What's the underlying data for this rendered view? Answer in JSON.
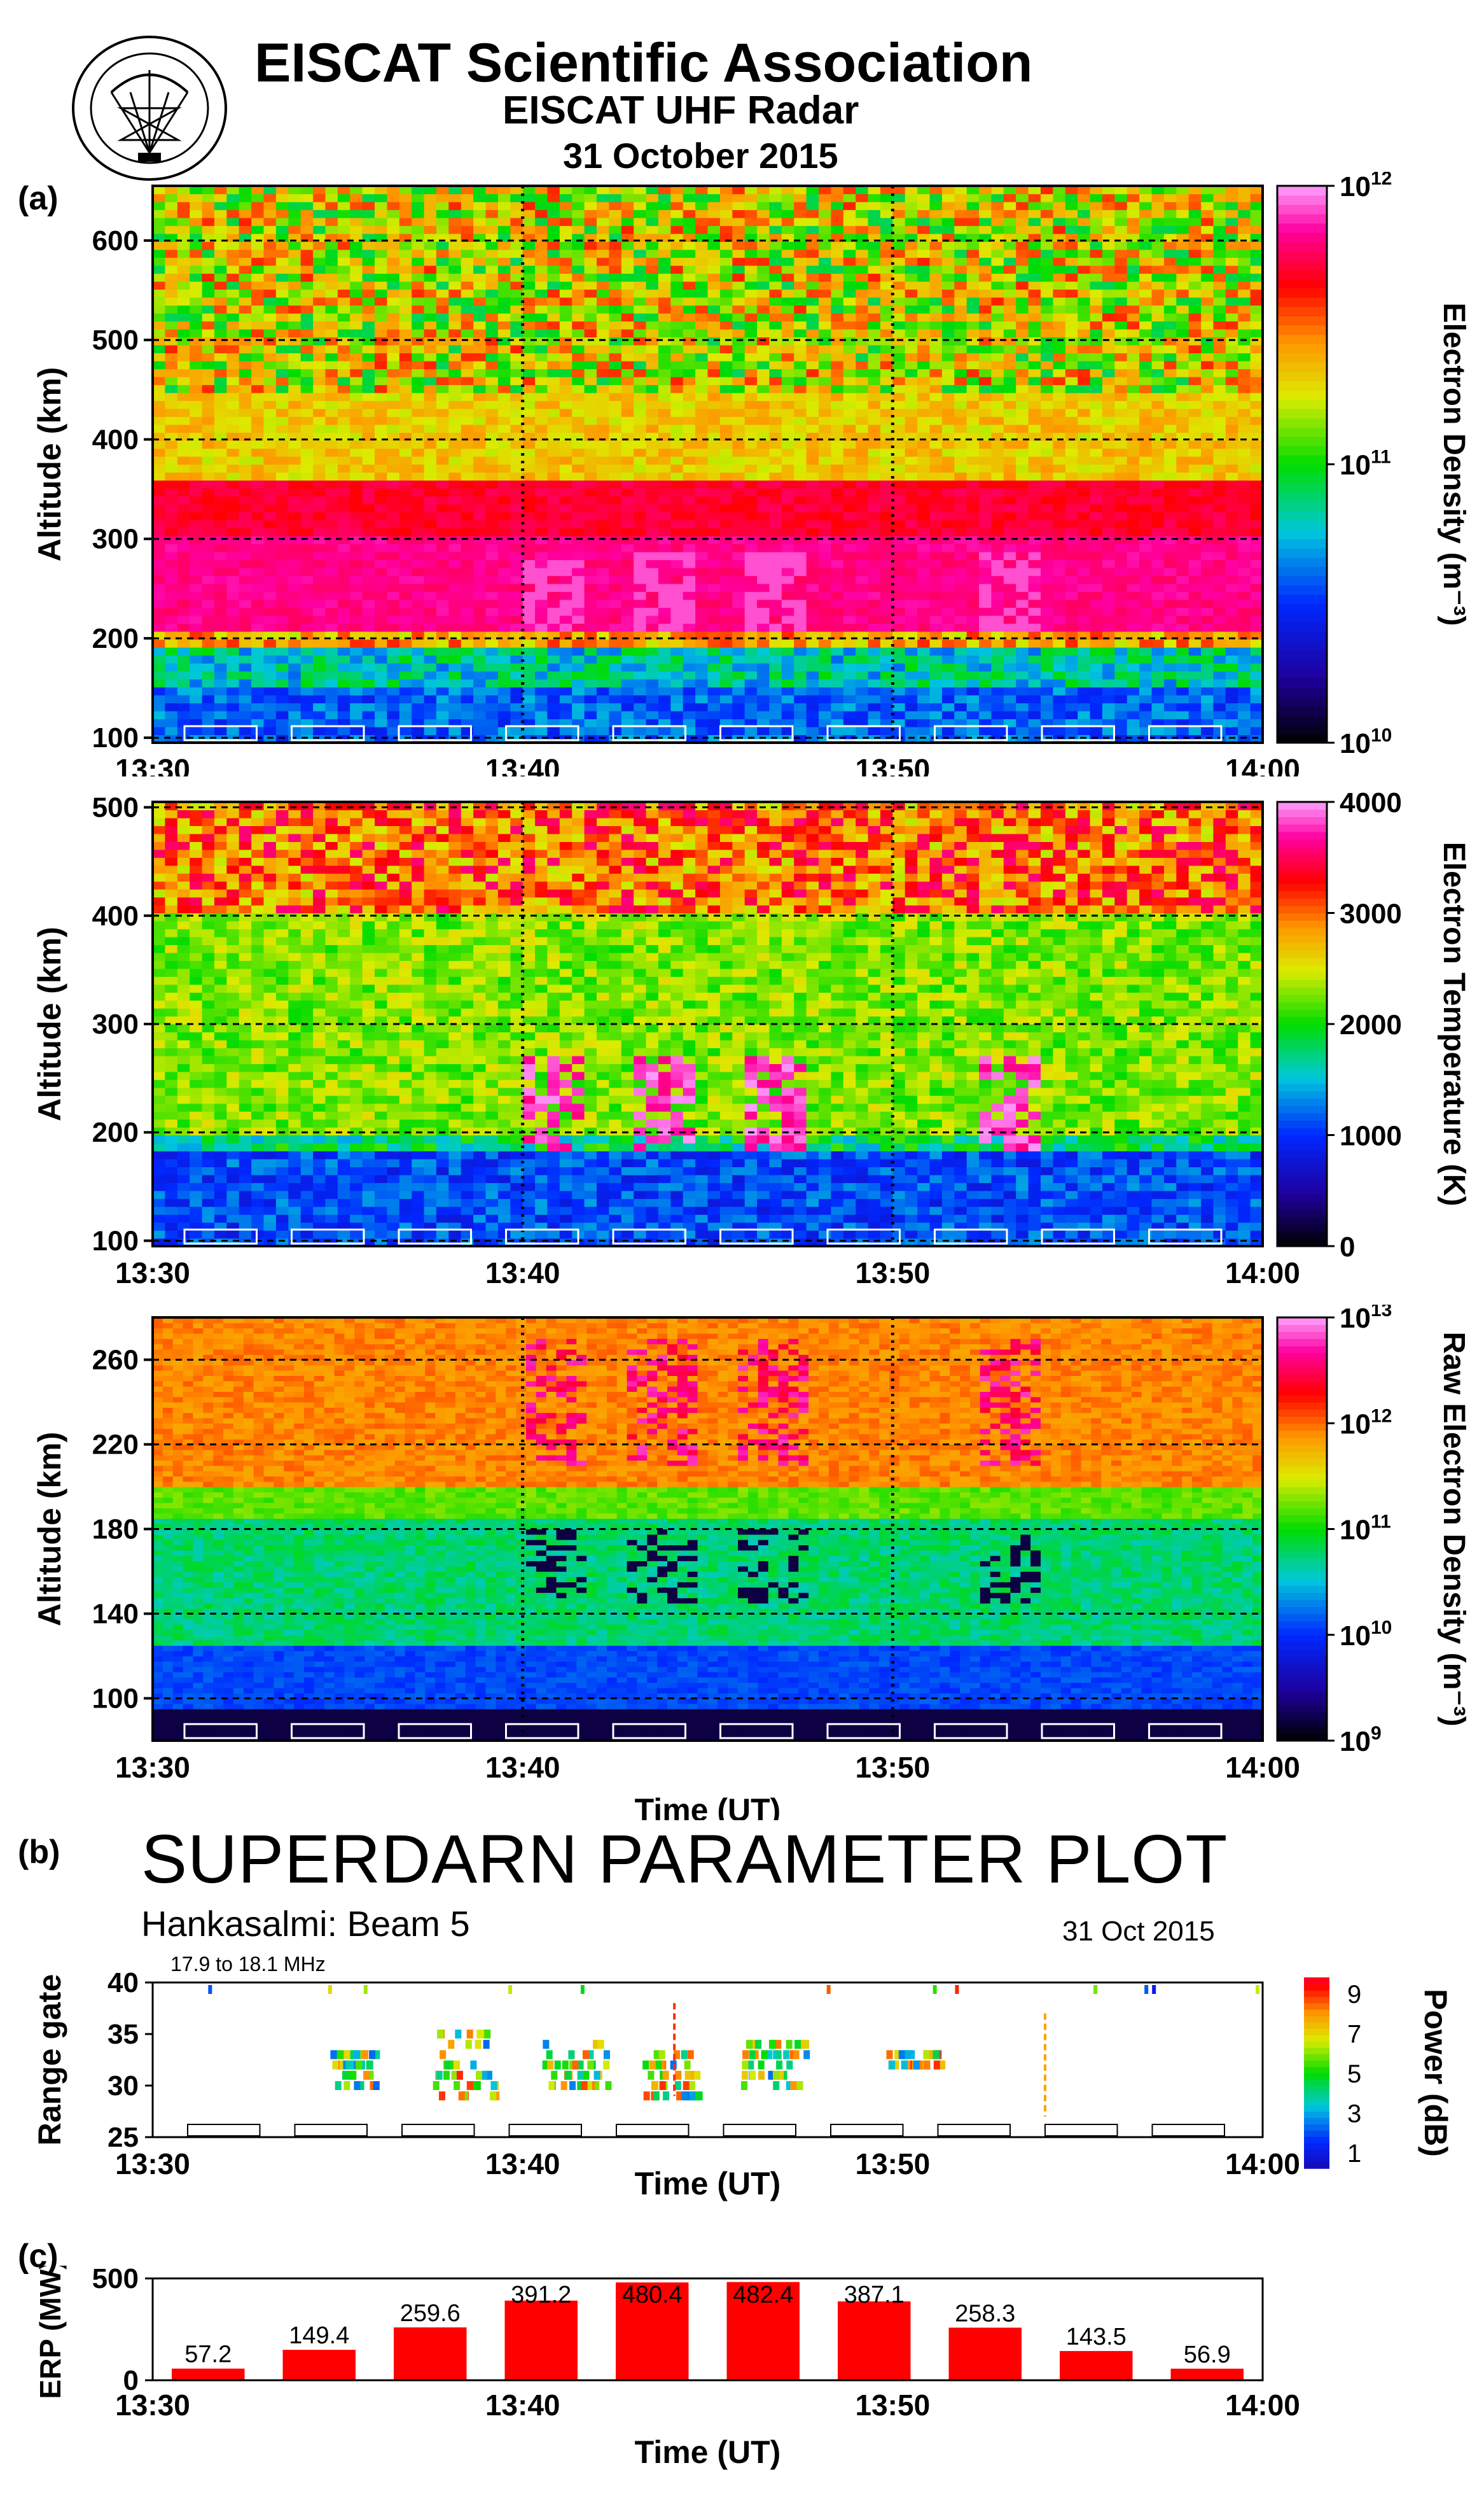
{
  "header": {
    "association": "EISCAT Scientific Association",
    "radar": "EISCAT UHF Radar",
    "date": "31 October 2015"
  },
  "panel_labels": {
    "a": "(a)",
    "b": "(b)",
    "c": "(c)"
  },
  "superdarn": {
    "title": "SUPERDARN PARAMETER PLOT",
    "subtitle": "Hankasalmi: Beam 5",
    "date": "31 Oct 2015",
    "frequency": "17.9 to 18.1 MHz"
  },
  "colors": {
    "bar": "#ff0000",
    "grid": "#000000"
  },
  "chart_data": [
    {
      "type": "heatmap",
      "id": "electron-density",
      "ylabel": "Altitude (km)",
      "xticks": [
        "13:30",
        "13:40",
        "13:50",
        "14:00"
      ],
      "yticks": [
        100,
        200,
        300,
        400,
        500,
        600
      ],
      "ylim": [
        95,
        655
      ],
      "colorbar_label": "Electron Density (m⁻³)",
      "colorbar_ticks": [
        "10",
        "10",
        "10"
      ],
      "colorbar_exponents": [
        "12",
        "11",
        "10"
      ],
      "colorscale": "log",
      "colorbar_range": [
        10000000000.0,
        1000000000000.0
      ]
    },
    {
      "type": "heatmap",
      "id": "electron-temperature",
      "ylabel": "Altitude (km)",
      "xticks": [
        "13:30",
        "13:40",
        "13:50",
        "14:00"
      ],
      "yticks": [
        100,
        200,
        300,
        400,
        500
      ],
      "ylim": [
        95,
        505
      ],
      "colorbar_label": "Electron Temperature (K)",
      "colorbar_ticks": [
        "4000",
        "3000",
        "2000",
        "1000",
        "0"
      ],
      "colorbar_range": [
        0,
        4000
      ]
    },
    {
      "type": "heatmap",
      "id": "raw-electron-density",
      "ylabel": "Altitude (km)",
      "xlabel": "Time (UT)",
      "xticks": [
        "13:30",
        "13:40",
        "13:50",
        "14:00"
      ],
      "yticks": [
        100,
        140,
        180,
        220,
        260
      ],
      "ylim": [
        80,
        280
      ],
      "colorbar_label": "Raw Electron Density (m⁻³)",
      "colorbar_ticks": [
        "10",
        "10",
        "10",
        "10",
        "10"
      ],
      "colorbar_exponents": [
        "13",
        "12",
        "11",
        "10",
        "9"
      ],
      "colorscale": "log",
      "colorbar_range": [
        1000000000.0,
        10000000000000.0
      ]
    },
    {
      "type": "scatter",
      "id": "superdarn-power",
      "ylabel": "Range gate",
      "xlabel": "Time (UT)",
      "xticks": [
        "13:30",
        "13:40",
        "13:50",
        "14:00"
      ],
      "yticks": [
        25,
        30,
        35,
        40
      ],
      "ylim": [
        25,
        40
      ],
      "colorbar_label": "Power (dB)",
      "colorbar_ticks": [
        "9",
        "7",
        "5",
        "3",
        "1"
      ],
      "colorbar_range": [
        0,
        10
      ]
    },
    {
      "type": "bar",
      "id": "erp",
      "ylabel": "ERP (MW)",
      "xlabel": "Time (UT)",
      "xticks": [
        "13:30",
        "13:40",
        "13:50",
        "14:00"
      ],
      "yticks": [
        0,
        500
      ],
      "ylim": [
        0,
        500
      ],
      "values": [
        57.2,
        149.4,
        259.6,
        391.2,
        480.4,
        482.4,
        387.1,
        258.3,
        143.5,
        56.9
      ],
      "labels": [
        "57.2",
        "149.4",
        "259.6",
        "391.2",
        "480.4",
        "482.4",
        "387.1",
        "258.3",
        "143.5",
        "56.9"
      ]
    }
  ]
}
